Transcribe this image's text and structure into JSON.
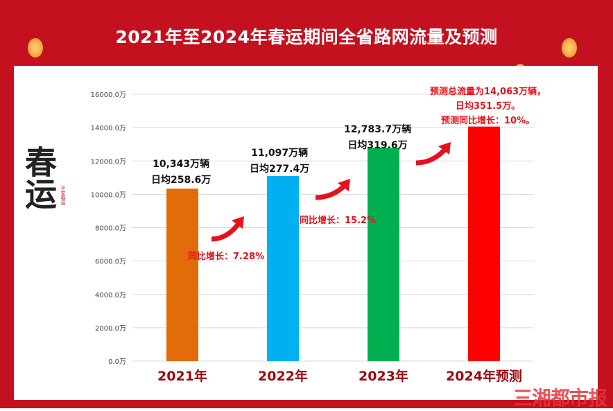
{
  "title": "2021年至2024年春运期间全省路网流量及预测",
  "logo": {
    "text": "春运",
    "sub": "平安春运"
  },
  "watermark": "三湘都市报",
  "chart_data": {
    "type": "bar",
    "title": "2021年至2024年春运期间全省路网流量及预测",
    "categories": [
      "2021年",
      "2022年",
      "2023年",
      "2024年预测"
    ],
    "values": [
      10343,
      11097,
      12783.7,
      14063
    ],
    "colors": [
      "#e36c0a",
      "#00b0f0",
      "#00b050",
      "#ff0000"
    ],
    "ylim": [
      0,
      16000
    ],
    "yticks": [
      "0.0万",
      "2000.0万",
      "4000.0万",
      "6000.0万",
      "8000.0万",
      "10000.0万",
      "12000.0万",
      "14000.0万",
      "16000.0万"
    ],
    "grid": true,
    "annotations": {
      "a2021": [
        "10,343万辆",
        "日均258.6万"
      ],
      "a2022": [
        "11,097万辆",
        "日均277.4万"
      ],
      "a2023": [
        "12,783.7万辆",
        "日均319.6万"
      ],
      "a2024": [
        "预测总流量为14,063万辆，",
        "日均351.5万。",
        "预测同比增长：10%。"
      ],
      "g2022": "同比增长：7.28%",
      "g2023": "同比增长：15.2%"
    }
  }
}
